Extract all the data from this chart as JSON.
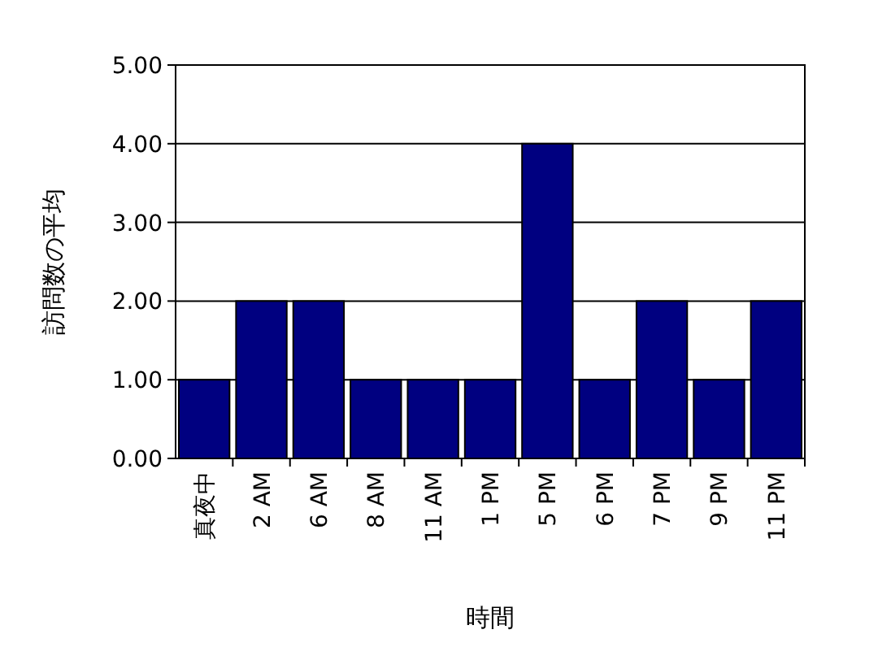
{
  "chart_data": {
    "type": "bar",
    "xlabel": "時間",
    "ylabel": "訪問数の平均",
    "categories": [
      "真夜中",
      "2 AM",
      "6 AM",
      "8 AM",
      "11 AM",
      "1 PM",
      "5 PM",
      "6 PM",
      "7 PM",
      "9 PM",
      "11 PM"
    ],
    "values": [
      1,
      2,
      2,
      1,
      1,
      1,
      4,
      1,
      2,
      1,
      2
    ],
    "color": "#000080",
    "ylim": [
      0,
      5
    ],
    "yticks": [
      {
        "value": 0,
        "label": "0.00"
      },
      {
        "value": 1,
        "label": "1.00"
      },
      {
        "value": 2,
        "label": "2.00"
      },
      {
        "value": 3,
        "label": "3.00"
      },
      {
        "value": 4,
        "label": "4.00"
      },
      {
        "value": 5,
        "label": "5.00"
      }
    ],
    "grid": "y"
  }
}
